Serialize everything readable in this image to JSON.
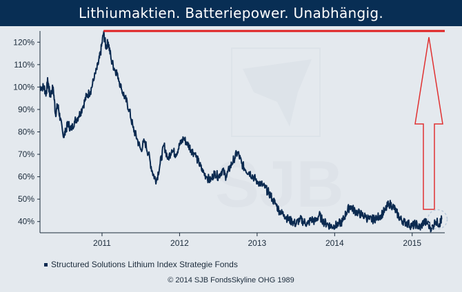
{
  "title": "Lithiumaktien. Batteriepower.  Unabhängig.",
  "legend_label": "Structured Solutions Lithium Index Strategie Fonds",
  "copyright": "© 2014 SJB FondsSkyline OHG 1989",
  "colors": {
    "title_bg": "#082e54",
    "series": "#0b2a50",
    "peak_line": "#e02020",
    "arrow": "#e03030",
    "background": "#e4e9ee"
  },
  "chart_data": {
    "type": "line",
    "title": "",
    "xlabel": "",
    "ylabel": "",
    "x_ticks": [
      "2011",
      "2012",
      "2013",
      "2014",
      "2015"
    ],
    "y_ticks": [
      "40%",
      "50%",
      "60%",
      "70%",
      "80%",
      "90%",
      "100%",
      "110%",
      "120%"
    ],
    "xlim": [
      2010.2,
      2015.42
    ],
    "ylim": [
      35,
      125
    ],
    "grid": false,
    "legend": "bottom-left",
    "series": [
      {
        "name": "Structured Solutions Lithium Index Strategie Fonds",
        "x": [
          2010.2,
          2010.25,
          2010.28,
          2010.3,
          2010.33,
          2010.37,
          2010.4,
          2010.43,
          2010.46,
          2010.5,
          2010.53,
          2010.56,
          2010.6,
          2010.65,
          2010.7,
          2010.75,
          2010.8,
          2010.85,
          2010.9,
          2010.95,
          2010.98,
          2011.02,
          2011.05,
          2011.08,
          2011.12,
          2011.16,
          2011.2,
          2011.25,
          2011.3,
          2011.35,
          2011.4,
          2011.45,
          2011.5,
          2011.55,
          2011.6,
          2011.65,
          2011.7,
          2011.75,
          2011.8,
          2011.85,
          2011.9,
          2011.95,
          2012.0,
          2012.05,
          2012.1,
          2012.15,
          2012.2,
          2012.25,
          2012.3,
          2012.35,
          2012.4,
          2012.45,
          2012.5,
          2012.55,
          2012.6,
          2012.65,
          2012.7,
          2012.75,
          2012.8,
          2012.85,
          2012.9,
          2012.95,
          2013.0,
          2013.05,
          2013.1,
          2013.15,
          2013.2,
          2013.25,
          2013.3,
          2013.35,
          2013.4,
          2013.45,
          2013.5,
          2013.55,
          2013.6,
          2013.65,
          2013.7,
          2013.75,
          2013.8,
          2013.85,
          2013.9,
          2013.95,
          2014.0,
          2014.05,
          2014.1,
          2014.15,
          2014.2,
          2014.25,
          2014.3,
          2014.35,
          2014.4,
          2014.45,
          2014.5,
          2014.55,
          2014.6,
          2014.65,
          2014.7,
          2014.75,
          2014.8,
          2014.85,
          2014.9,
          2014.95,
          2015.0,
          2015.05,
          2015.1,
          2015.15,
          2015.2,
          2015.25,
          2015.3,
          2015.35,
          2015.38
        ],
        "values": [
          100,
          100,
          97,
          103,
          96,
          100,
          88,
          92,
          86,
          78,
          80,
          84,
          81,
          85,
          87,
          91,
          96,
          98,
          104,
          110,
          115,
          124,
          118,
          120,
          112,
          108,
          106,
          99,
          95,
          90,
          82,
          77,
          72,
          76,
          70,
          62,
          58,
          66,
          74,
          68,
          72,
          70,
          74,
          77,
          75,
          72,
          70,
          66,
          62,
          60,
          58,
          62,
          60,
          63,
          60,
          64,
          68,
          71,
          66,
          63,
          62,
          60,
          58,
          57,
          55,
          53,
          50,
          47,
          44,
          43,
          41,
          40,
          39,
          41,
          40,
          39,
          41,
          40,
          43,
          40,
          39,
          38,
          38,
          39,
          40,
          44,
          47,
          45,
          44,
          43,
          42,
          41,
          41,
          42,
          43,
          45,
          48,
          47,
          44,
          41,
          40,
          39,
          38,
          39,
          37,
          40,
          39,
          37,
          40,
          39,
          41
        ]
      }
    ],
    "peak_level": 125
  }
}
